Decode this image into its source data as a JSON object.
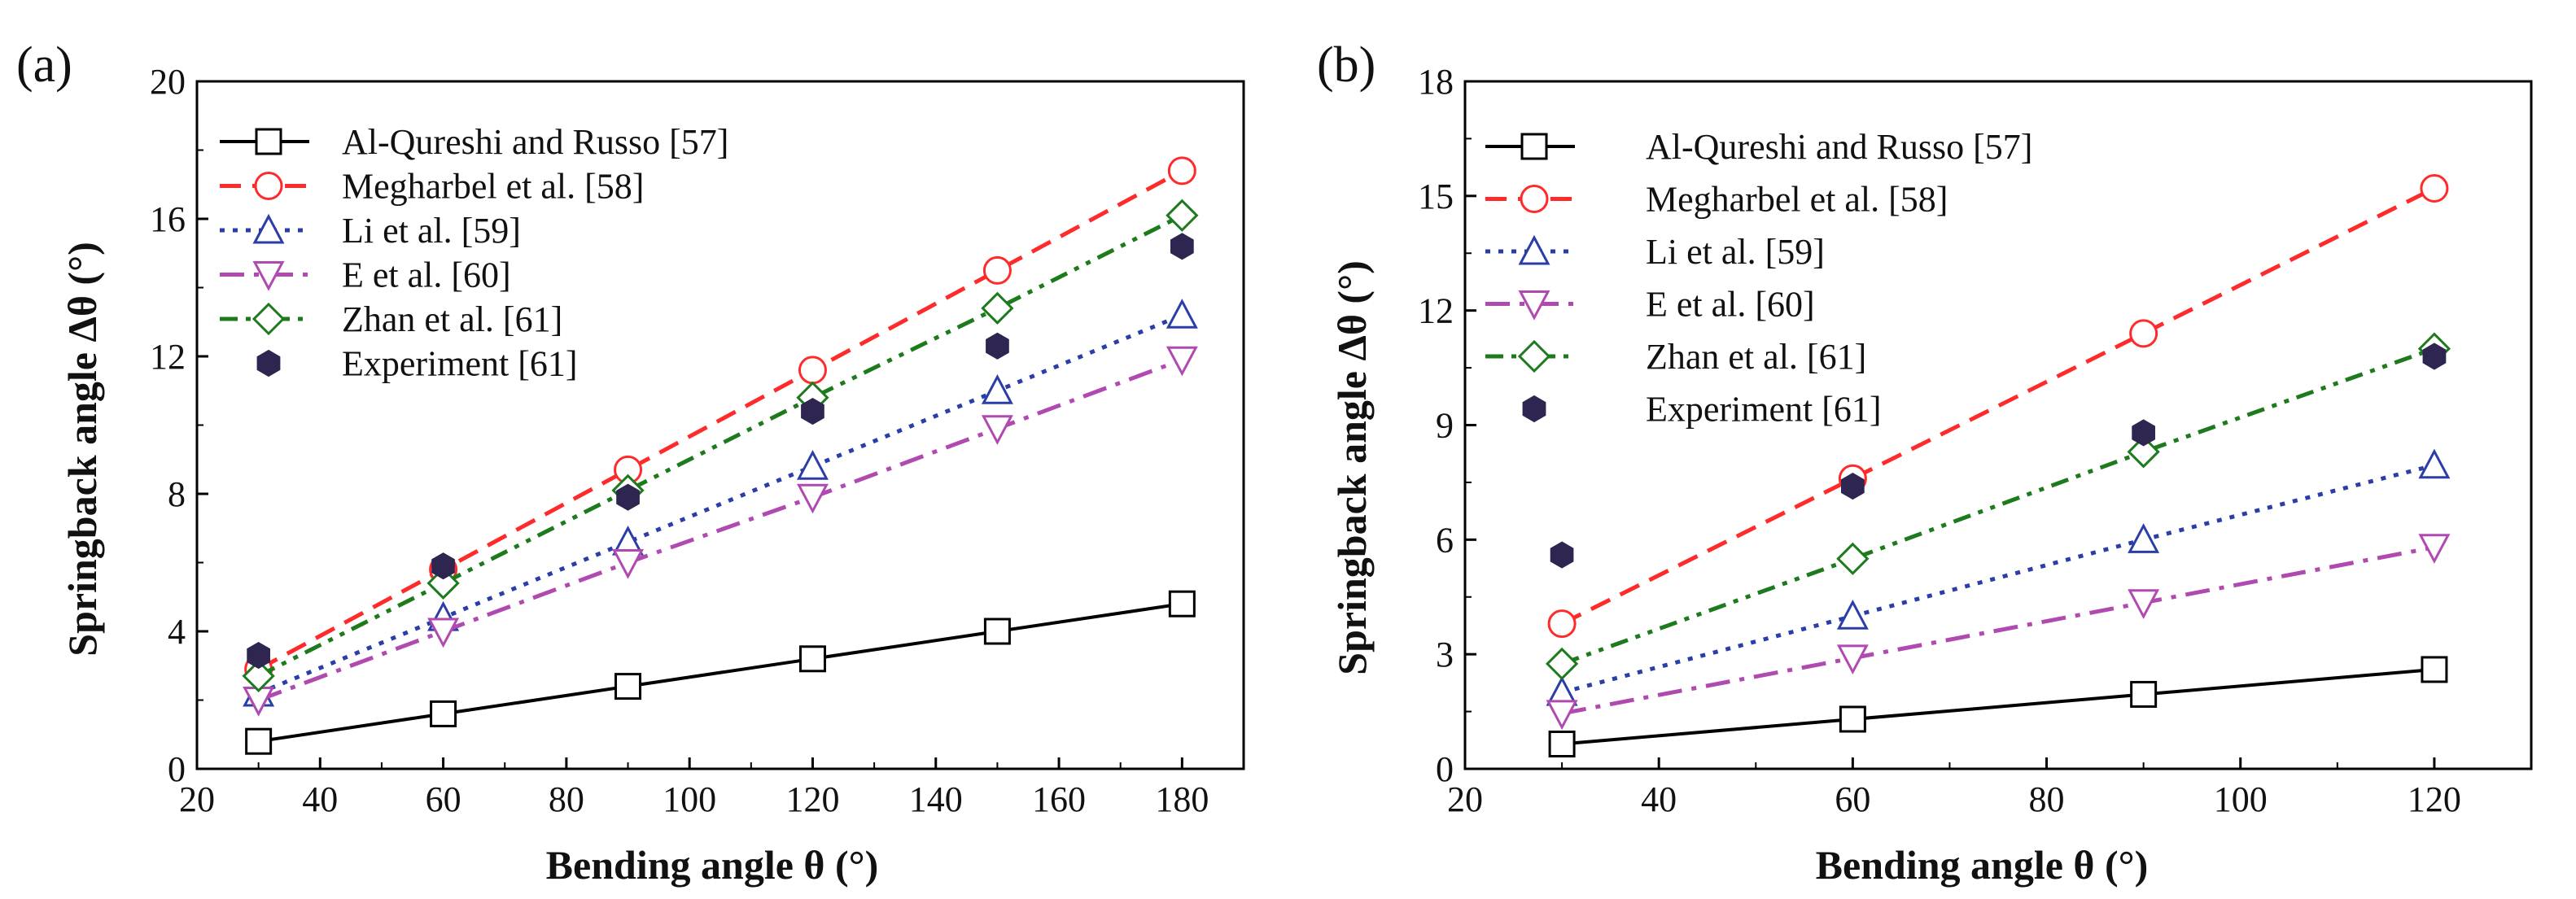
{
  "figure": {
    "background": "#ffffff"
  },
  "chart_data": [
    {
      "panel_label": "(a)",
      "type": "line",
      "title": "",
      "xlabel": "Bending angle θ (°)",
      "ylabel": "Springback angle Δθ (°)",
      "xlim": [
        20,
        190
      ],
      "ylim": [
        0,
        20
      ],
      "xticks": [
        20,
        40,
        60,
        80,
        100,
        120,
        140,
        160,
        180
      ],
      "yticks": [
        0,
        4,
        8,
        12,
        16,
        20
      ],
      "grid": false,
      "legend_position": "top-left",
      "x": [
        30,
        60,
        90,
        120,
        150,
        180
      ],
      "series": [
        {
          "name": "Al-Qureshi and Russo [57]",
          "marker": "square-open",
          "line": "solid",
          "color": "#000000",
          "values": [
            0.8,
            1.6,
            2.4,
            3.2,
            4.0,
            4.8
          ]
        },
        {
          "name": "Megharbel et al. [58]",
          "marker": "circle-open",
          "line": "dashed",
          "color": "#ff2a2a",
          "values": [
            2.9,
            5.8,
            8.7,
            11.6,
            14.5,
            17.4
          ]
        },
        {
          "name": "Li et al. [59]",
          "marker": "triangle-up-open",
          "line": "dotted",
          "color": "#2b3ea8",
          "values": [
            2.2,
            4.4,
            6.6,
            8.8,
            11.0,
            13.2
          ]
        },
        {
          "name": "E et al. [60]",
          "marker": "triangle-down-open",
          "line": "dash-dot",
          "color": "#b04ab0",
          "values": [
            2.0,
            4.0,
            6.0,
            7.9,
            9.9,
            11.9
          ]
        },
        {
          "name": "Zhan et al. [61]",
          "marker": "diamond-open",
          "line": "dash-dot-dot",
          "color": "#1d7a1d",
          "values": [
            2.7,
            5.4,
            8.1,
            10.8,
            13.4,
            16.1
          ]
        },
        {
          "name": "Experiment [61]",
          "marker": "hexagon-filled",
          "line": "none",
          "color": "#2e2550",
          "values": [
            3.3,
            5.9,
            7.9,
            10.4,
            12.3,
            15.2
          ]
        }
      ]
    },
    {
      "panel_label": "(b)",
      "type": "line",
      "title": "",
      "xlabel": "Bending angle θ (°)",
      "ylabel": "Springback angle Δθ (°)",
      "xlim": [
        20,
        130
      ],
      "ylim": [
        0,
        18
      ],
      "xticks": [
        20,
        40,
        60,
        80,
        100,
        120
      ],
      "yticks": [
        0,
        3,
        6,
        9,
        12,
        15,
        18
      ],
      "grid": false,
      "legend_position": "top-left",
      "x": [
        30,
        60,
        90,
        120
      ],
      "series": [
        {
          "name": "Al-Qureshi and Russo [57]",
          "marker": "square-open",
          "line": "solid",
          "color": "#000000",
          "values": [
            0.65,
            1.3,
            1.95,
            2.6
          ]
        },
        {
          "name": "Megharbel et al. [58]",
          "marker": "circle-open",
          "line": "dashed",
          "color": "#ff2a2a",
          "values": [
            3.8,
            7.6,
            11.4,
            15.2
          ]
        },
        {
          "name": "Li et al. [59]",
          "marker": "triangle-up-open",
          "line": "dotted",
          "color": "#2b3ea8",
          "values": [
            2.0,
            4.0,
            6.0,
            7.95
          ]
        },
        {
          "name": "E et al. [60]",
          "marker": "triangle-down-open",
          "line": "dash-dot",
          "color": "#b04ab0",
          "values": [
            1.45,
            2.9,
            4.35,
            5.8
          ]
        },
        {
          "name": "Zhan et al. [61]",
          "marker": "diamond-open",
          "line": "dash-dot-dot",
          "color": "#1d7a1d",
          "values": [
            2.75,
            5.5,
            8.3,
            11.0
          ]
        },
        {
          "name": "Experiment [61]",
          "marker": "hexagon-filled",
          "line": "none",
          "color": "#2e2550",
          "values": [
            5.6,
            7.4,
            8.8,
            10.8
          ]
        }
      ]
    }
  ]
}
